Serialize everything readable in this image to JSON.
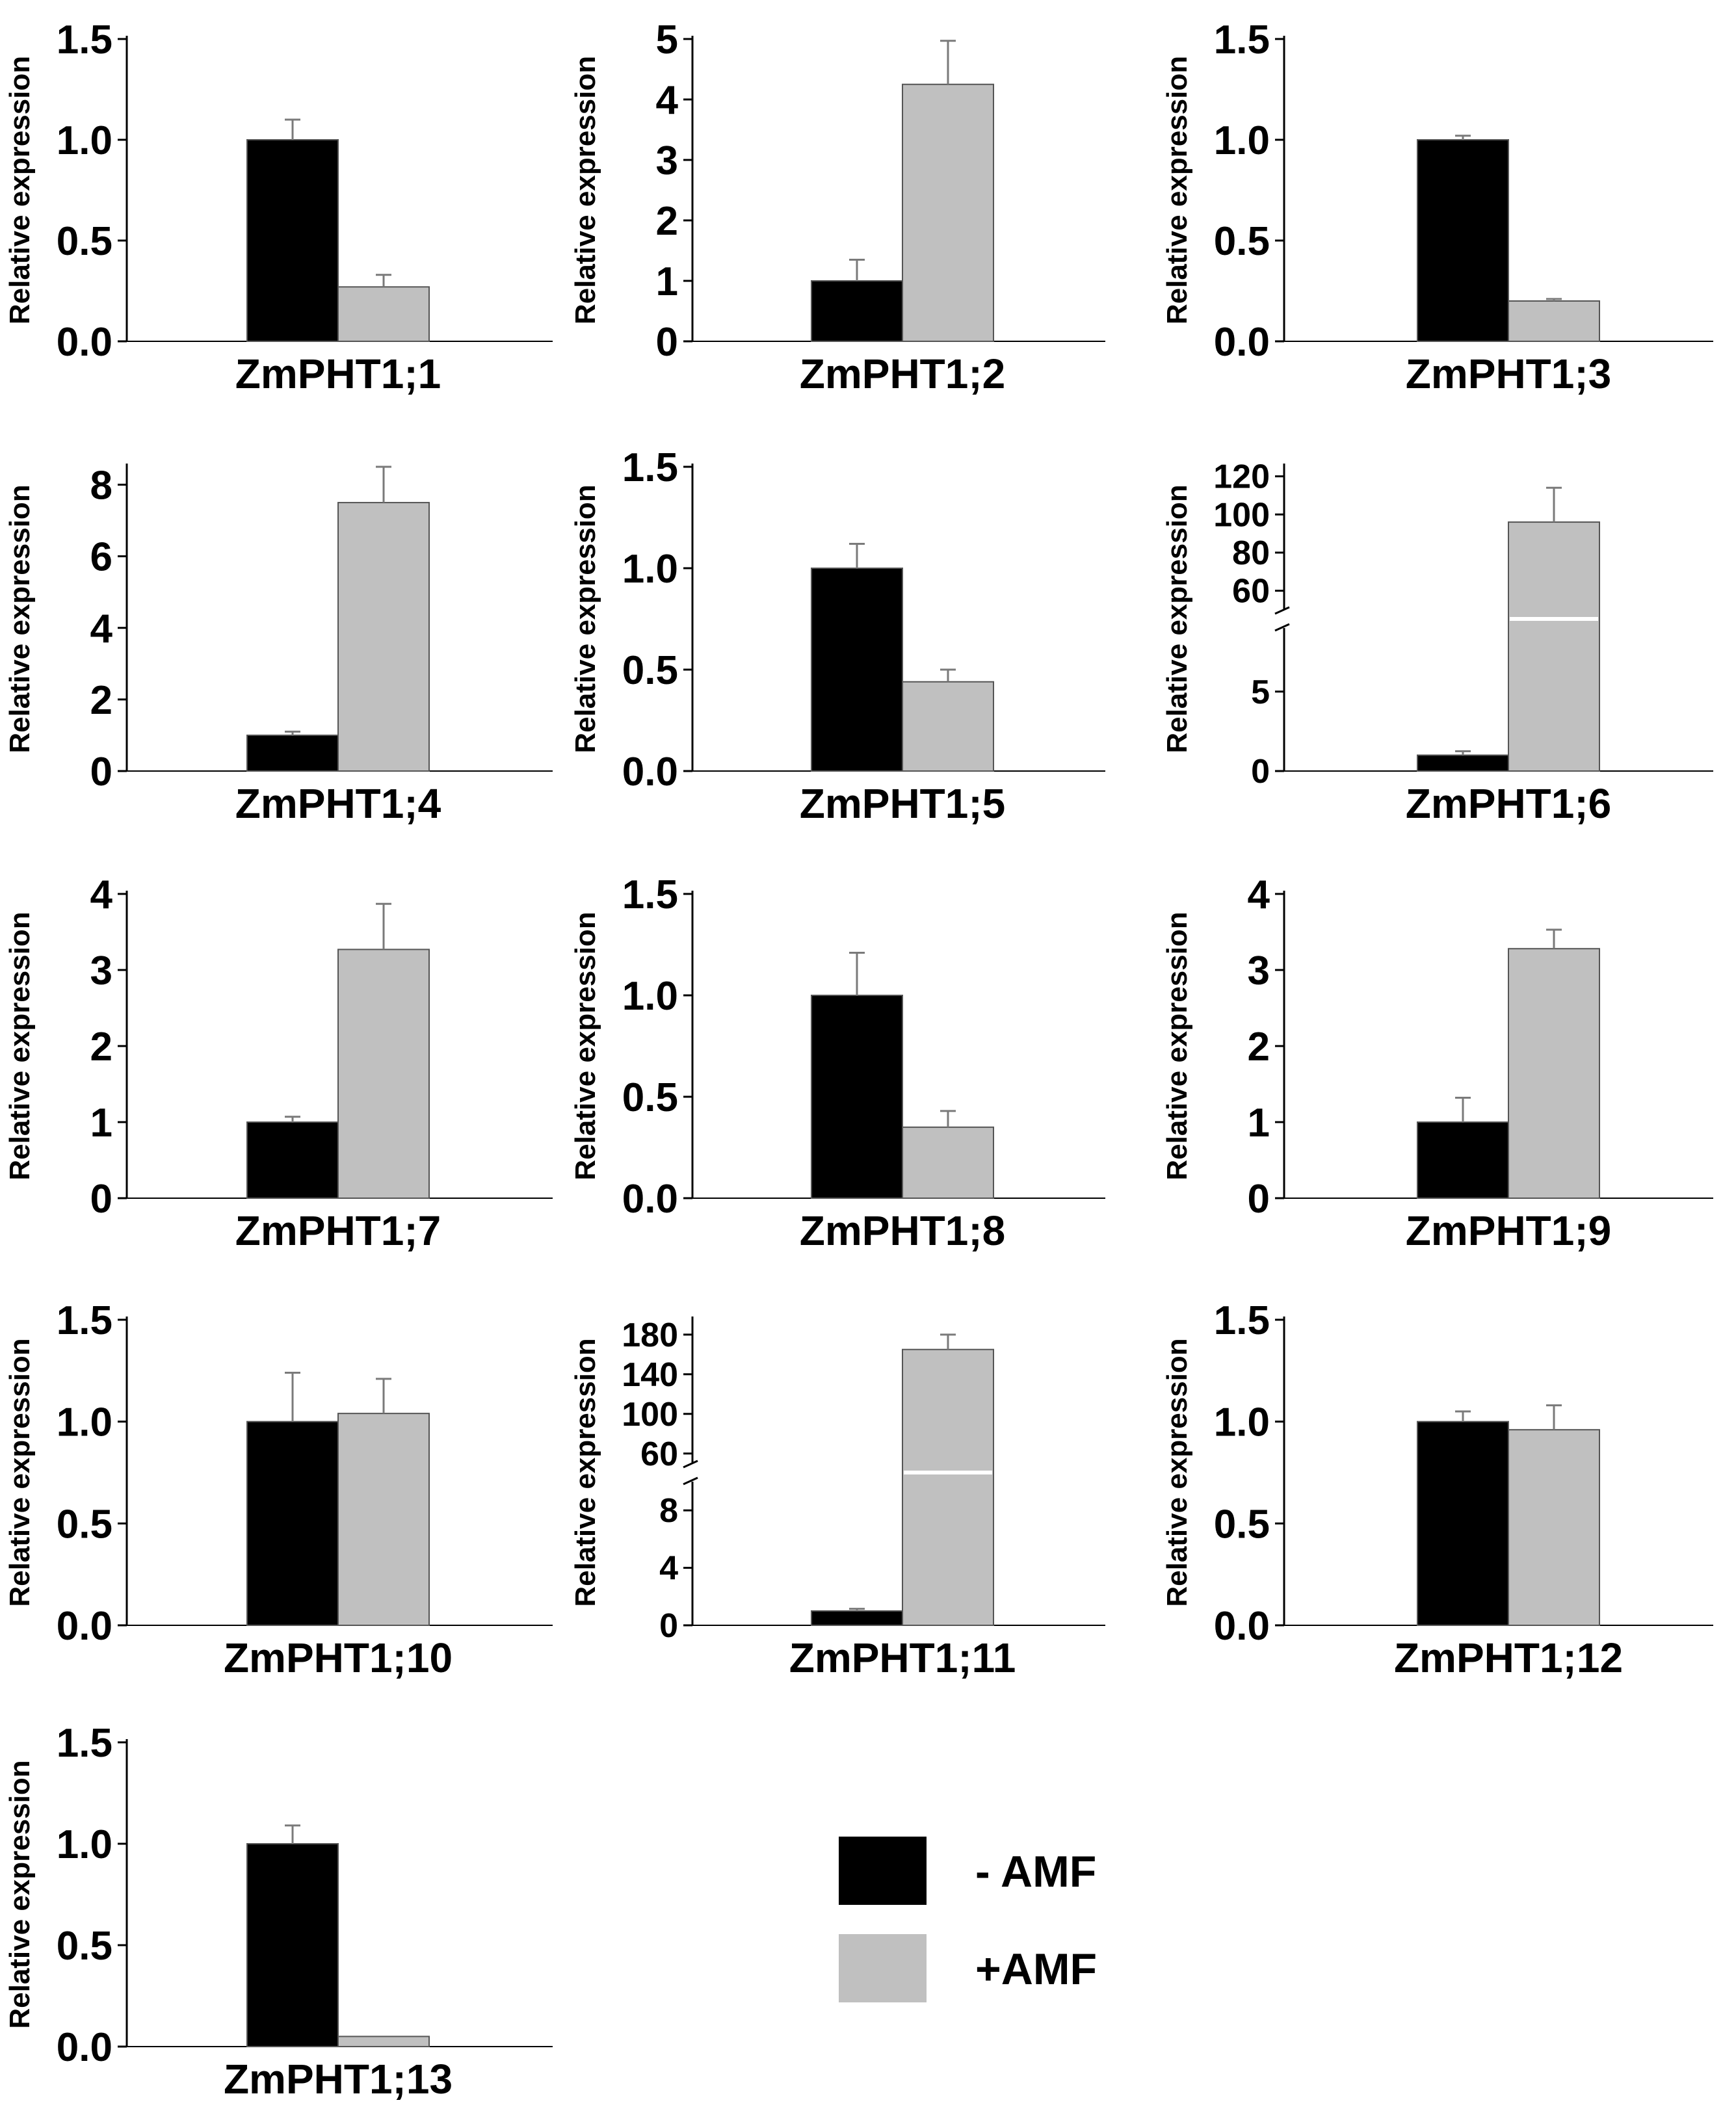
{
  "legend": {
    "items": [
      {
        "label": "- AMF",
        "color": "#000000"
      },
      {
        "label": "+AMF",
        "color": "#c0c0c0"
      }
    ]
  },
  "colors": {
    "minus_amf": "#000000",
    "plus_amf": "#c0c0c0",
    "error_bar": "#7a7a7a"
  },
  "chart_data": [
    {
      "type": "bar",
      "title": "ZmPHT1;1",
      "ylabel": "Relative expression",
      "categories": [
        "- AMF",
        "+AMF"
      ],
      "values": [
        1.0,
        0.27
      ],
      "errors": [
        0.1,
        0.06
      ],
      "ylim": [
        0,
        1.5
      ],
      "yticks": [
        "0.0",
        "0.5",
        "1.0",
        "1.5"
      ]
    },
    {
      "type": "bar",
      "title": "ZmPHT1;2",
      "ylabel": "Relative expression",
      "categories": [
        "- AMF",
        "+AMF"
      ],
      "values": [
        1.0,
        4.25
      ],
      "errors": [
        0.35,
        0.72
      ],
      "ylim": [
        0,
        5
      ],
      "yticks": [
        "0",
        "1",
        "2",
        "3",
        "4",
        "5"
      ]
    },
    {
      "type": "bar",
      "title": "ZmPHT1;3",
      "ylabel": "Relative expression",
      "categories": [
        "- AMF",
        "+AMF"
      ],
      "values": [
        1.0,
        0.2
      ],
      "errors": [
        0.02,
        0.01
      ],
      "ylim": [
        0,
        1.5
      ],
      "yticks": [
        "0.0",
        "0.5",
        "1.0",
        "1.5"
      ]
    },
    {
      "type": "bar",
      "title": "ZmPHT1;4",
      "ylabel": "Relative expression",
      "categories": [
        "- AMF",
        "+AMF"
      ],
      "values": [
        1.0,
        7.5
      ],
      "errors": [
        0.1,
        1.0
      ],
      "ylim": [
        0,
        8.5
      ],
      "yticks": [
        "0",
        "2",
        "4",
        "6",
        "8"
      ]
    },
    {
      "type": "bar",
      "title": "ZmPHT1;5",
      "ylabel": "Relative expression",
      "categories": [
        "- AMF",
        "+AMF"
      ],
      "values": [
        1.0,
        0.44
      ],
      "errors": [
        0.12,
        0.06
      ],
      "ylim": [
        0,
        1.5
      ],
      "yticks": [
        "0.0",
        "0.5",
        "1.0",
        "1.5"
      ]
    },
    {
      "type": "bar",
      "title": "ZmPHT1;6",
      "ylabel": "Relative expression",
      "categories": [
        "- AMF",
        "+AMF"
      ],
      "values": [
        1.0,
        96
      ],
      "errors": [
        0.25,
        18
      ],
      "broken_axis": {
        "lower": [
          0,
          9
        ],
        "upper": [
          50,
          125
        ]
      },
      "yticks_lower": [
        "0",
        "5"
      ],
      "yticks_upper": [
        "60",
        "80",
        "100",
        "120"
      ]
    },
    {
      "type": "bar",
      "title": "ZmPHT1;7",
      "ylabel": "Relative expression",
      "categories": [
        "- AMF",
        "+AMF"
      ],
      "values": [
        1.0,
        3.27
      ],
      "errors": [
        0.07,
        0.6
      ],
      "ylim": [
        0,
        4
      ],
      "yticks": [
        "0",
        "1",
        "2",
        "3",
        "4"
      ]
    },
    {
      "type": "bar",
      "title": "ZmPHT1;8",
      "ylabel": "Relative expression",
      "categories": [
        "- AMF",
        "+AMF"
      ],
      "values": [
        1.0,
        0.35
      ],
      "errors": [
        0.21,
        0.08
      ],
      "ylim": [
        0,
        1.5
      ],
      "yticks": [
        "0.0",
        "0.5",
        "1.0",
        "1.5"
      ]
    },
    {
      "type": "bar",
      "title": "ZmPHT1;9",
      "ylabel": "Relative expression",
      "categories": [
        "- AMF",
        "+AMF"
      ],
      "values": [
        1.0,
        3.28
      ],
      "errors": [
        0.32,
        0.25
      ],
      "ylim": [
        0,
        4
      ],
      "yticks": [
        "0",
        "1",
        "2",
        "3",
        "4"
      ]
    },
    {
      "type": "bar",
      "title": "ZmPHT1;10",
      "ylabel": "Relative expression",
      "categories": [
        "- AMF",
        "+AMF"
      ],
      "values": [
        1.0,
        1.04
      ],
      "errors": [
        0.24,
        0.17
      ],
      "ylim": [
        0,
        1.5
      ],
      "yticks": [
        "0.0",
        "0.5",
        "1.0",
        "1.5"
      ]
    },
    {
      "type": "bar",
      "title": "ZmPHT1;11",
      "ylabel": "Relative expression",
      "categories": [
        "- AMF",
        "+AMF"
      ],
      "values": [
        1.0,
        165
      ],
      "errors": [
        0.15,
        15
      ],
      "broken_axis": {
        "lower": [
          0,
          10
        ],
        "upper": [
          50,
          195
        ]
      },
      "yticks_lower": [
        "0",
        "4",
        "8"
      ],
      "yticks_upper": [
        "60",
        "100",
        "140",
        "180"
      ]
    },
    {
      "type": "bar",
      "title": "ZmPHT1;12",
      "ylabel": "Relative expression",
      "categories": [
        "- AMF",
        "+AMF"
      ],
      "values": [
        1.0,
        0.96
      ],
      "errors": [
        0.05,
        0.12
      ],
      "ylim": [
        0,
        1.5
      ],
      "yticks": [
        "0.0",
        "0.5",
        "1.0",
        "1.5"
      ]
    },
    {
      "type": "bar",
      "title": "ZmPHT1;13",
      "ylabel": "Relative expression",
      "categories": [
        "- AMF",
        "+AMF"
      ],
      "values": [
        1.0,
        0.05
      ],
      "errors": [
        0.09,
        0.0
      ],
      "ylim": [
        0,
        1.5
      ],
      "yticks": [
        "0.0",
        "0.5",
        "1.0",
        "1.5"
      ]
    }
  ]
}
